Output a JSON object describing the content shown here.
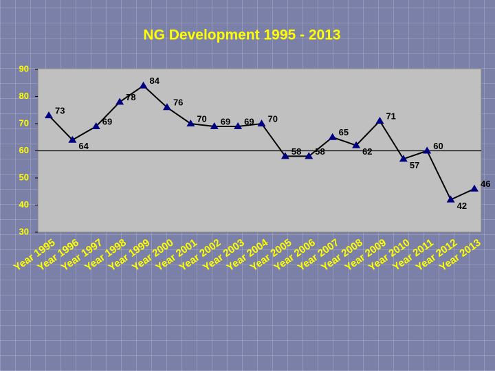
{
  "chart_data": {
    "type": "line",
    "title": "NG Development 1995 - 2013",
    "categories": [
      "Year 1995",
      "Year 1996",
      "Year 1997",
      "Year 1998",
      "Year 1999",
      "Year 2000",
      "Year 2001",
      "Year 2002",
      "Year 2003",
      "Year 2004",
      "Year 2005",
      "Year 2006",
      "Year 2007",
      "Year 2008",
      "Year 2009",
      "Year 2010",
      "Year 2011",
      "Year 2012",
      "Year 2013"
    ],
    "values": [
      73,
      64,
      69,
      78,
      84,
      76,
      70,
      69,
      69,
      70,
      58,
      58,
      65,
      62,
      71,
      57,
      60,
      42,
      46
    ],
    "color": "#000080",
    "line_color": "#000000",
    "ylim": [
      30,
      90
    ],
    "yticks": [
      30,
      40,
      50,
      60,
      70,
      80,
      90
    ],
    "x_axis_crosses": 60,
    "grid": false
  }
}
